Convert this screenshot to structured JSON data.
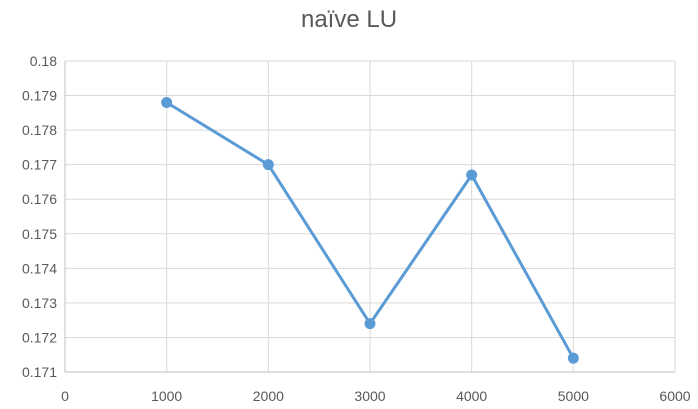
{
  "chart_data": {
    "type": "line",
    "title": "naïve LU",
    "xlabel": "",
    "ylabel": "",
    "xlim": [
      0,
      6000
    ],
    "ylim": [
      0.171,
      0.18
    ],
    "x_ticks": [
      "0",
      "1000",
      "2000",
      "3000",
      "4000",
      "5000",
      "6000"
    ],
    "y_ticks": [
      "0.171",
      "0.172",
      "0.173",
      "0.174",
      "0.175",
      "0.176",
      "0.177",
      "0.178",
      "0.179",
      "0.18"
    ],
    "grid": true,
    "legend": "none",
    "series": [
      {
        "color": "#5b9bd5",
        "x": [
          1000,
          2000,
          3000,
          4000,
          5000
        ],
        "y": [
          0.1788,
          0.177,
          0.1724,
          0.1767,
          0.1714
        ]
      }
    ]
  }
}
